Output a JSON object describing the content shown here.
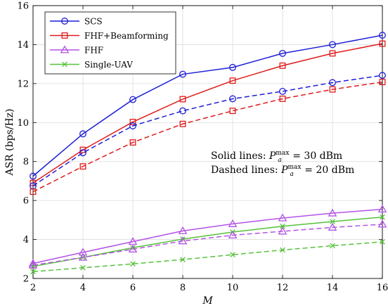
{
  "chart_data": {
    "type": "line",
    "x": [
      2,
      4,
      6,
      8,
      10,
      12,
      14,
      16
    ],
    "xlim": [
      2,
      16
    ],
    "ylim": [
      2,
      16
    ],
    "xticks": [
      2,
      4,
      6,
      8,
      10,
      12,
      14,
      16
    ],
    "yticks": [
      2,
      4,
      6,
      8,
      10,
      12,
      14,
      16
    ],
    "xlabel": "M",
    "ylabel": "ASR (bps/Hz)",
    "grid": true,
    "legend_position": "top-left",
    "legend": [
      {
        "name": "SCS",
        "color": "#1f1fd6",
        "marker": "circle"
      },
      {
        "name": "FHF+Beamforming",
        "color": "#e01b1b",
        "marker": "square"
      },
      {
        "name": "FHF",
        "color": "#b453e6",
        "marker": "triangle"
      },
      {
        "name": "Single-UAV",
        "color": "#56c23a",
        "marker": "x"
      }
    ],
    "series": [
      {
        "name": "SCS",
        "line_style": "solid",
        "color": "#1f1fd6",
        "marker": "circle",
        "values": [
          7.25,
          9.42,
          11.18,
          12.48,
          12.83,
          13.55,
          14.0,
          14.48
        ]
      },
      {
        "name": "FHF+Beamforming",
        "line_style": "solid",
        "color": "#e01b1b",
        "marker": "square",
        "values": [
          6.9,
          8.6,
          10.03,
          11.2,
          12.15,
          12.92,
          13.55,
          14.05
        ]
      },
      {
        "name": "FHF",
        "line_style": "solid",
        "color": "#b453e6",
        "marker": "triangle",
        "values": [
          2.77,
          3.34,
          3.89,
          4.44,
          4.8,
          5.1,
          5.35,
          5.55
        ]
      },
      {
        "name": "Single-UAV",
        "line_style": "solid",
        "color": "#56c23a",
        "marker": "x",
        "values": [
          2.62,
          3.08,
          3.58,
          4.02,
          4.38,
          4.68,
          4.92,
          5.15
        ]
      },
      {
        "name": "SCS",
        "line_style": "dashed",
        "color": "#1f1fd6",
        "marker": "circle",
        "values": [
          6.75,
          8.45,
          9.83,
          10.6,
          11.22,
          11.6,
          12.05,
          12.42
        ]
      },
      {
        "name": "FHF+Beamforming",
        "line_style": "dashed",
        "color": "#e01b1b",
        "marker": "square",
        "values": [
          6.45,
          7.75,
          8.98,
          9.93,
          10.6,
          11.22,
          11.7,
          12.08
        ]
      },
      {
        "name": "FHF",
        "line_style": "dashed",
        "color": "#b453e6",
        "marker": "triangle",
        "values": [
          2.68,
          3.08,
          3.5,
          3.92,
          4.22,
          4.42,
          4.62,
          4.78
        ]
      },
      {
        "name": "Single-UAV",
        "line_style": "dashed",
        "color": "#56c23a",
        "marker": "x",
        "values": [
          2.35,
          2.55,
          2.75,
          2.97,
          3.22,
          3.46,
          3.68,
          3.88
        ]
      }
    ],
    "annotations": [
      {
        "prefix": "Solid lines: ",
        "sym": "P",
        "sub": "a",
        "sup": "max",
        "suffix": " = 30 dBm"
      },
      {
        "prefix": "Dashed lines: ",
        "sym": "P",
        "sub": "a",
        "sup": "max",
        "suffix": " = 20 dBm"
      }
    ]
  }
}
